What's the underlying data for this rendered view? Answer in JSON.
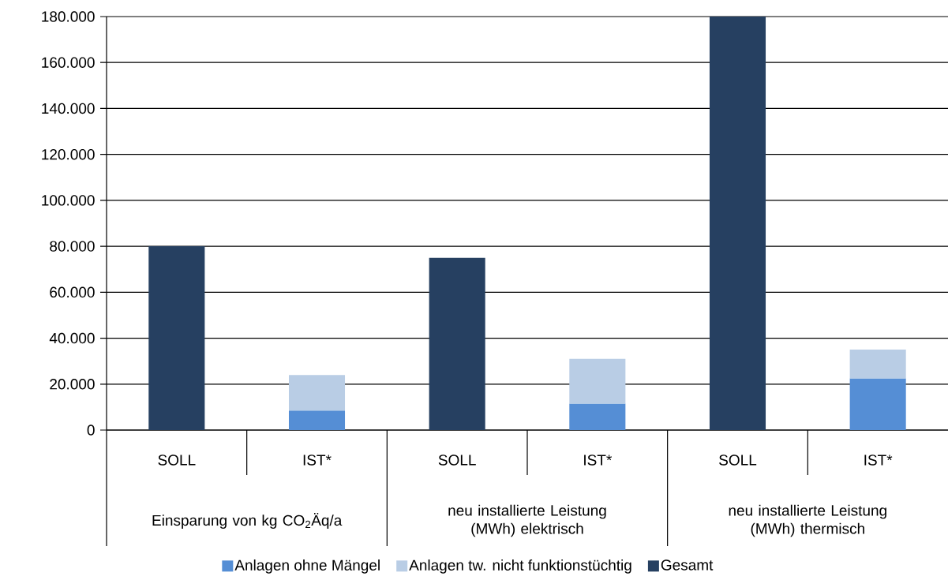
{
  "chart_data": {
    "type": "bar",
    "stacked": true,
    "categories": [
      "SOLL",
      "IST*",
      "SOLL",
      "IST*",
      "SOLL",
      "IST*"
    ],
    "annotations": [
      "Einsparung von kg CO$_{2}$Äq/a",
      "neu installierte Leistung (MWh) elektrisch",
      "neu installierte Leistung (MWh) thermisch"
    ],
    "series": [
      {
        "name": "Anlagen ohne Mängel",
        "color": "#558ed5",
        "values": [
          null,
          8500,
          null,
          11500,
          null,
          22500
        ]
      },
      {
        "name": "Anlagen tw. nicht funktionstüchtig",
        "color": "#b9cde5",
        "values": [
          null,
          15500,
          null,
          19500,
          null,
          12500
        ]
      },
      {
        "name": "Gesamt",
        "color": "#264061",
        "values": [
          80000,
          null,
          75000,
          null,
          180000,
          null
        ]
      }
    ],
    "ylim": [
      0,
      180000
    ],
    "yticks": [
      0,
      {
        "value": 20000,
        "label": "20.000"
      },
      {
        "value": 40000,
        "label": "40.000"
      },
      {
        "value": 60000,
        "label": "60.000"
      },
      {
        "value": 80000,
        "label": "80.000"
      },
      {
        "value": 100000,
        "label": "100.000"
      },
      {
        "value": 120000,
        "label": "120.000"
      },
      {
        "value": 140000,
        "label": "140.000"
      },
      {
        "value": 160000,
        "label": "160.000"
      },
      {
        "value": 180000,
        "label": "180.000"
      }
    ],
    "grid": "y",
    "legend": "bottom"
  }
}
